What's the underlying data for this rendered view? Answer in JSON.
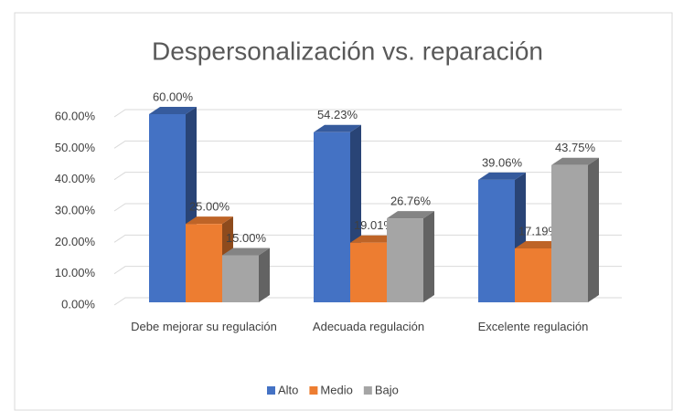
{
  "chart_data": {
    "type": "bar3d",
    "title": "Despersonalización vs.  reparación",
    "categories": [
      "Debe mejorar su regulación",
      "Adecuada regulación",
      "Excelente regulación"
    ],
    "series": [
      {
        "name": "Alto",
        "color": "#4472c4",
        "values": [
          60,
          54.23,
          39.06
        ],
        "value_labels": [
          "60.00%",
          "54.23%",
          "39.06%"
        ]
      },
      {
        "name": "Medio",
        "color": "#ed7d31",
        "values": [
          25,
          19.01,
          17.19
        ],
        "value_labels": [
          "25.00%",
          "19.01%",
          "17.19%"
        ]
      },
      {
        "name": "Bajo",
        "color": "#a5a5a5",
        "values": [
          15,
          26.76,
          43.75
        ],
        "value_labels": [
          "15.00%",
          "26.76%",
          "43.75%"
        ]
      }
    ],
    "ylim": [
      0,
      60
    ],
    "yticks": [
      {
        "value": 0,
        "label": "0.00%"
      },
      {
        "value": 10,
        "label": "10.00%"
      },
      {
        "value": 20,
        "label": "20.00%"
      },
      {
        "value": 30,
        "label": "30.00%"
      },
      {
        "value": 40,
        "label": "40.00%"
      },
      {
        "value": 50,
        "label": "50.00%"
      },
      {
        "value": 60,
        "label": "60.00%"
      }
    ],
    "grid": true,
    "legend": "bottom"
  }
}
